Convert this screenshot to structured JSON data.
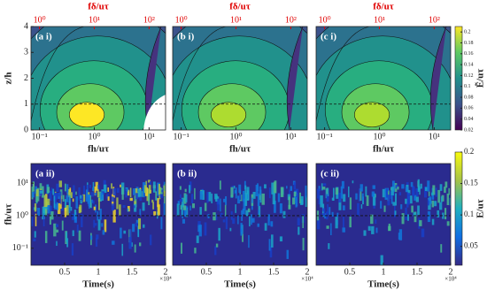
{
  "chart_data": [
    {
      "type": "contour",
      "panels": [
        "(a i)",
        "(b i)",
        "(c i)"
      ],
      "x_label": "fh/uτ",
      "x2_label": "fδ/uτ",
      "y_label": "z/h",
      "x_scale": "log",
      "xlim": [
        0.07,
        20
      ],
      "xticks": [
        {
          "value": 0.1,
          "label": "10⁻¹"
        },
        {
          "value": 1,
          "label": "10⁰"
        },
        {
          "value": 10,
          "label": "10¹"
        }
      ],
      "x2lim": [
        0.7,
        200
      ],
      "x2ticks": [
        {
          "value": 1,
          "label": "10⁰"
        },
        {
          "value": 10,
          "label": "10¹"
        },
        {
          "value": 100,
          "label": "10²"
        }
      ],
      "x2_color": "#e00000",
      "ylim": [
        0,
        4
      ],
      "yticks": [
        0,
        1,
        2,
        3,
        4
      ],
      "hline": 1,
      "colorbar": {
        "label": "Ẽ/uτ",
        "lim": [
          0.02,
          0.21
        ],
        "ticks": [
          0.02,
          0.04,
          0.06,
          0.08,
          0.1,
          0.12,
          0.14,
          0.16,
          0.18,
          0.2
        ],
        "colormap": "viridis"
      }
    },
    {
      "type": "heatmap",
      "panels": [
        "(a ii)",
        "(b ii)",
        "(c ii)"
      ],
      "x_label": "Time(s)",
      "x_multiplier": "×10⁴",
      "y_label": "fh/uτ",
      "y_scale": "log",
      "xlim": [
        0,
        2
      ],
      "xticks": [
        0.5,
        1,
        1.5,
        2
      ],
      "ylim": [
        0.03,
        40
      ],
      "yticks": [
        {
          "value": 0.1,
          "label": "10⁻¹"
        },
        {
          "value": 1,
          "label": "10⁰"
        },
        {
          "value": 10,
          "label": "10¹"
        }
      ],
      "hline": 1,
      "colorbar": {
        "label": "E/uτ",
        "lim": [
          0.02,
          0.2
        ],
        "ticks": [
          0.05,
          0.1,
          0.15,
          0.2
        ],
        "colormap": "parula"
      }
    }
  ]
}
